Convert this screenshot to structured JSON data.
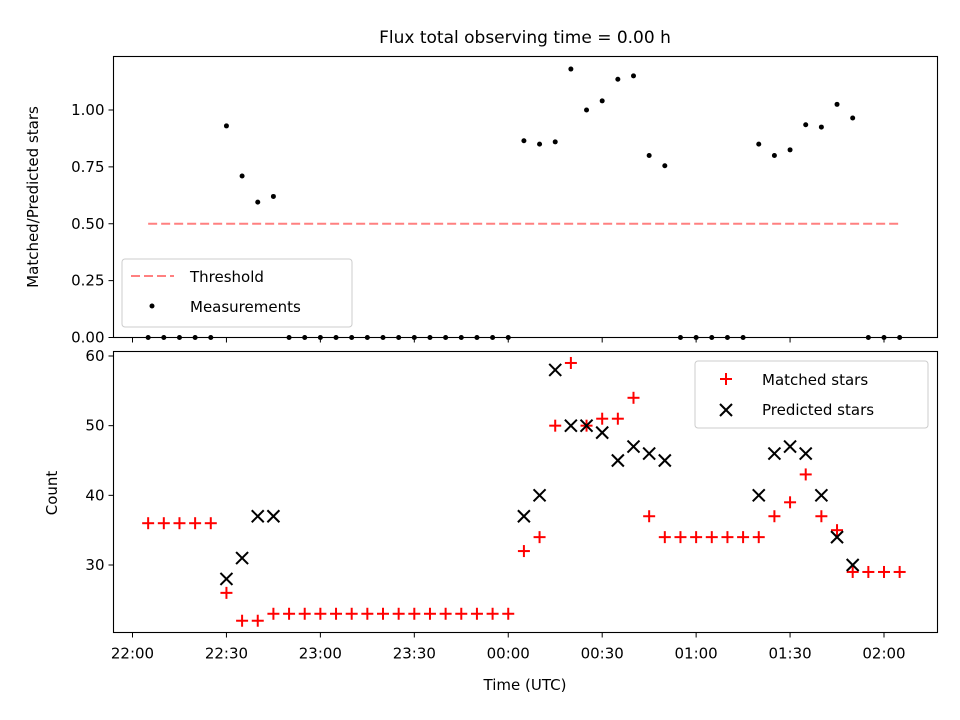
{
  "chart_data": [
    {
      "type": "scatter",
      "title": "Flux total observing time = 0.00 h",
      "ylabel": "Matched/Predicted stars",
      "xlabel": "",
      "ylim": [
        0,
        1.24
      ],
      "yticks": [
        "0.00",
        "0.25",
        "0.50",
        "0.75",
        "1.00"
      ],
      "ytick_values": [
        0,
        0.25,
        0.5,
        0.75,
        1.0
      ],
      "legend_position": "lower-left",
      "series": [
        {
          "name": "Threshold",
          "kind": "dashed-line",
          "color": "#ff8080",
          "x": [
            "22:05",
            "02:05"
          ],
          "y": [
            0.5,
            0.5
          ]
        },
        {
          "name": "Measurements",
          "kind": "dot",
          "color": "#000000",
          "x": [
            "22:05",
            "22:10",
            "22:15",
            "22:20",
            "22:25",
            "22:30",
            "22:35",
            "22:40",
            "22:45",
            "22:50",
            "22:55",
            "23:00",
            "23:05",
            "23:10",
            "23:15",
            "23:20",
            "23:25",
            "23:30",
            "23:35",
            "23:40",
            "23:45",
            "23:50",
            "23:55",
            "00:00",
            "00:05",
            "00:10",
            "00:15",
            "00:20",
            "00:25",
            "00:30",
            "00:35",
            "00:40",
            "00:45",
            "00:50",
            "00:55",
            "01:00",
            "01:05",
            "01:10",
            "01:15",
            "01:20",
            "01:25",
            "01:30",
            "01:35",
            "01:40",
            "01:45",
            "01:50",
            "01:55",
            "02:00",
            "02:05"
          ],
          "y": [
            0,
            0,
            0,
            0,
            0,
            0.93,
            0.71,
            0.595,
            0.62,
            0,
            0,
            0,
            0,
            0,
            0,
            0,
            0,
            0,
            0,
            0,
            0,
            0,
            0,
            0,
            0.865,
            0.85,
            0.86,
            1.18,
            1.0,
            1.04,
            1.135,
            1.15,
            0.8,
            0.755,
            0,
            0,
            0,
            0,
            0,
            0.85,
            0.8,
            0.825,
            0.935,
            0.925,
            1.025,
            0.965,
            0,
            0,
            0
          ]
        }
      ]
    },
    {
      "type": "scatter",
      "title": "",
      "xlabel": "Time (UTC)",
      "ylabel": "Count",
      "ylim": [
        20.5,
        61
      ],
      "yticks": [
        "30",
        "40",
        "50",
        "60"
      ],
      "ytick_values": [
        30,
        40,
        50,
        60
      ],
      "xlim": [
        "21:53",
        "02:10"
      ],
      "xticks": [
        "22:00",
        "22:30",
        "23:00",
        "23:30",
        "00:00",
        "00:30",
        "01:00",
        "01:30",
        "02:00"
      ],
      "legend_position": "upper-right",
      "series": [
        {
          "name": "Matched stars",
          "marker": "plus",
          "color": "#ff0000",
          "x": [
            "22:05",
            "22:10",
            "22:15",
            "22:20",
            "22:25",
            "22:30",
            "22:35",
            "22:40",
            "22:45",
            "22:50",
            "22:55",
            "23:00",
            "23:05",
            "23:10",
            "23:15",
            "23:20",
            "23:25",
            "23:30",
            "23:35",
            "23:40",
            "23:45",
            "23:50",
            "23:55",
            "00:00",
            "00:05",
            "00:10",
            "00:15",
            "00:20",
            "00:25",
            "00:30",
            "00:35",
            "00:40",
            "00:45",
            "00:50",
            "00:55",
            "01:00",
            "01:05",
            "01:10",
            "01:15",
            "01:20",
            "01:25",
            "01:30",
            "01:35",
            "01:40",
            "01:45",
            "01:50",
            "01:55",
            "02:00",
            "02:05"
          ],
          "y": [
            36,
            36,
            36,
            36,
            36,
            26,
            22,
            22,
            23,
            23,
            23,
            23,
            23,
            23,
            23,
            23,
            23,
            23,
            23,
            23,
            23,
            23,
            23,
            23,
            32,
            34,
            50,
            59,
            50,
            51,
            51,
            54,
            37,
            34,
            34,
            34,
            34,
            34,
            34,
            34,
            37,
            39,
            43,
            37,
            35,
            29,
            29,
            29,
            29
          ]
        },
        {
          "name": "Predicted stars",
          "marker": "x",
          "color": "#000000",
          "x": [
            "22:30",
            "22:35",
            "22:40",
            "22:45",
            "00:05",
            "00:10",
            "00:15",
            "00:20",
            "00:25",
            "00:30",
            "00:35",
            "00:40",
            "00:45",
            "00:50",
            "01:20",
            "01:25",
            "01:30",
            "01:35",
            "01:40",
            "01:45",
            "01:50"
          ],
          "y": [
            28,
            31,
            37,
            37,
            37,
            40,
            58,
            50,
            50,
            49,
            45,
            47,
            46,
            45,
            40,
            46,
            47,
            46,
            40,
            34,
            30
          ]
        }
      ]
    }
  ]
}
